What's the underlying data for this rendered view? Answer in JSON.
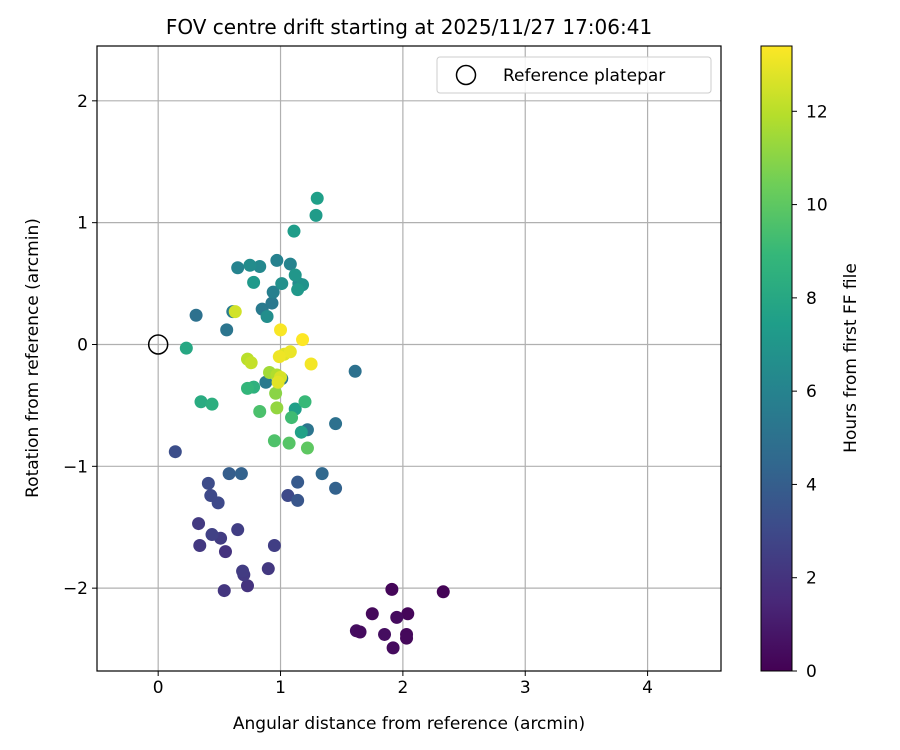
{
  "chart_data": {
    "type": "scatter",
    "title": "FOV centre drift starting at 2025/11/27 17:06:41",
    "xlabel": "Angular distance from reference (arcmin)",
    "ylabel": "Rotation from reference (arcmin)",
    "xlim": [
      -0.5,
      4.6
    ],
    "ylim": [
      -2.68,
      2.45
    ],
    "xticks": [
      0,
      1,
      2,
      3,
      4
    ],
    "yticks": [
      -2,
      -1,
      0,
      1,
      2
    ],
    "xtick_labels": [
      "0",
      "1",
      "2",
      "3",
      "4"
    ],
    "ytick_labels": [
      "−2",
      "−1",
      "0",
      "1",
      "2"
    ],
    "grid": true,
    "legend": {
      "location": "top-right",
      "entries": [
        "Reference platepar"
      ]
    },
    "reference_point": {
      "x": 0,
      "y": 0
    },
    "colorbar": {
      "label": "Hours from first FF file",
      "range": [
        0,
        13.4
      ],
      "ticks": [
        0,
        2,
        4,
        6,
        8,
        10,
        12
      ],
      "tick_labels": [
        "0",
        "2",
        "4",
        "6",
        "8",
        "10",
        "12"
      ],
      "colormap": [
        "#440154",
        "#482878",
        "#3e4989",
        "#31688e",
        "#26828e",
        "#1f9e89",
        "#35b779",
        "#6ece58",
        "#b5de2b",
        "#fde725"
      ]
    },
    "points": [
      {
        "x": 1.91,
        "y": -2.01,
        "h": 0.2
      },
      {
        "x": 2.33,
        "y": -2.03,
        "h": 0.1
      },
      {
        "x": 1.75,
        "y": -2.21,
        "h": 0.3
      },
      {
        "x": 2.04,
        "y": -2.21,
        "h": 0.2
      },
      {
        "x": 1.95,
        "y": -2.24,
        "h": 0.4
      },
      {
        "x": 2.03,
        "y": -2.38,
        "h": 0.3
      },
      {
        "x": 1.62,
        "y": -2.35,
        "h": 0.5
      },
      {
        "x": 1.65,
        "y": -2.36,
        "h": 0.4
      },
      {
        "x": 2.03,
        "y": -2.41,
        "h": 0.3
      },
      {
        "x": 1.85,
        "y": -2.38,
        "h": 0.5
      },
      {
        "x": 1.92,
        "y": -2.49,
        "h": 0.4
      },
      {
        "x": 0.54,
        "y": -2.02,
        "h": 2.1
      },
      {
        "x": 0.73,
        "y": -1.98,
        "h": 2.0
      },
      {
        "x": 0.7,
        "y": -1.89,
        "h": 2.3
      },
      {
        "x": 0.69,
        "y": -1.86,
        "h": 2.4
      },
      {
        "x": 0.9,
        "y": -1.84,
        "h": 2.2
      },
      {
        "x": 0.55,
        "y": -1.7,
        "h": 2.0
      },
      {
        "x": 0.95,
        "y": -1.65,
        "h": 2.5
      },
      {
        "x": 0.34,
        "y": -1.65,
        "h": 2.2
      },
      {
        "x": 0.51,
        "y": -1.59,
        "h": 2.4
      },
      {
        "x": 0.44,
        "y": -1.56,
        "h": 2.6
      },
      {
        "x": 0.33,
        "y": -1.47,
        "h": 2.3
      },
      {
        "x": 0.65,
        "y": -1.52,
        "h": 2.5
      },
      {
        "x": 0.49,
        "y": -1.3,
        "h": 3.0
      },
      {
        "x": 0.43,
        "y": -1.24,
        "h": 3.0
      },
      {
        "x": 0.41,
        "y": -1.14,
        "h": 3.1
      },
      {
        "x": 1.06,
        "y": -1.24,
        "h": 3.0
      },
      {
        "x": 0.14,
        "y": -0.88,
        "h": 3.2
      },
      {
        "x": 1.14,
        "y": -1.28,
        "h": 3.6
      },
      {
        "x": 1.14,
        "y": -1.13,
        "h": 3.8
      },
      {
        "x": 1.45,
        "y": -1.18,
        "h": 4.2
      },
      {
        "x": 0.58,
        "y": -1.06,
        "h": 4.0
      },
      {
        "x": 0.68,
        "y": -1.06,
        "h": 4.2
      },
      {
        "x": 1.34,
        "y": -1.06,
        "h": 4.5
      },
      {
        "x": 1.45,
        "y": -0.65,
        "h": 5.0
      },
      {
        "x": 1.22,
        "y": -0.7,
        "h": 5.2
      },
      {
        "x": 1.61,
        "y": -0.22,
        "h": 5.0
      },
      {
        "x": 0.31,
        "y": 0.24,
        "h": 5.0
      },
      {
        "x": 0.56,
        "y": 0.12,
        "h": 5.2
      },
      {
        "x": 0.88,
        "y": -0.31,
        "h": 5.5
      },
      {
        "x": 1.01,
        "y": -0.28,
        "h": 5.5
      },
      {
        "x": 0.61,
        "y": 0.27,
        "h": 5.6
      },
      {
        "x": 0.85,
        "y": 0.29,
        "h": 5.5
      },
      {
        "x": 0.93,
        "y": 0.34,
        "h": 5.4
      },
      {
        "x": 0.94,
        "y": 0.43,
        "h": 5.8
      },
      {
        "x": 0.65,
        "y": 0.63,
        "h": 6.0
      },
      {
        "x": 0.97,
        "y": 0.69,
        "h": 5.9
      },
      {
        "x": 1.08,
        "y": 0.66,
        "h": 6.0
      },
      {
        "x": 0.83,
        "y": 0.64,
        "h": 6.3
      },
      {
        "x": 0.75,
        "y": 0.65,
        "h": 6.5
      },
      {
        "x": 0.89,
        "y": 0.23,
        "h": 6.6
      },
      {
        "x": 1.01,
        "y": 0.5,
        "h": 6.7
      },
      {
        "x": 1.15,
        "y": 0.5,
        "h": 6.4
      },
      {
        "x": 1.18,
        "y": 0.49,
        "h": 6.8
      },
      {
        "x": 1.12,
        "y": 0.57,
        "h": 7.0
      },
      {
        "x": 1.14,
        "y": 0.45,
        "h": 7.1
      },
      {
        "x": 0.78,
        "y": 0.51,
        "h": 7.2
      },
      {
        "x": 1.11,
        "y": 0.93,
        "h": 7.4
      },
      {
        "x": 1.29,
        "y": 1.06,
        "h": 7.3
      },
      {
        "x": 1.3,
        "y": 1.2,
        "h": 7.5
      },
      {
        "x": 1.12,
        "y": -0.53,
        "h": 7.5
      },
      {
        "x": 1.17,
        "y": -0.72,
        "h": 7.6
      },
      {
        "x": 0.23,
        "y": -0.03,
        "h": 8.0
      },
      {
        "x": 0.35,
        "y": -0.47,
        "h": 8.2
      },
      {
        "x": 0.44,
        "y": -0.49,
        "h": 8.4
      },
      {
        "x": 0.78,
        "y": -0.35,
        "h": 8.5
      },
      {
        "x": 0.73,
        "y": -0.36,
        "h": 8.8
      },
      {
        "x": 1.2,
        "y": -0.47,
        "h": 9.0
      },
      {
        "x": 1.09,
        "y": -0.6,
        "h": 9.2
      },
      {
        "x": 0.83,
        "y": -0.55,
        "h": 9.5
      },
      {
        "x": 0.95,
        "y": -0.79,
        "h": 9.6
      },
      {
        "x": 1.07,
        "y": -0.81,
        "h": 9.8
      },
      {
        "x": 1.22,
        "y": -0.85,
        "h": 10.0
      },
      {
        "x": 0.96,
        "y": -0.4,
        "h": 11.0
      },
      {
        "x": 0.97,
        "y": -0.52,
        "h": 11.2
      },
      {
        "x": 0.91,
        "y": -0.23,
        "h": 11.5
      },
      {
        "x": 0.97,
        "y": -0.25,
        "h": 11.8
      },
      {
        "x": 0.73,
        "y": -0.12,
        "h": 12.0
      },
      {
        "x": 0.76,
        "y": -0.15,
        "h": 12.2
      },
      {
        "x": 0.63,
        "y": 0.27,
        "h": 12.5
      },
      {
        "x": 1.0,
        "y": -0.27,
        "h": 12.6
      },
      {
        "x": 0.98,
        "y": -0.31,
        "h": 12.8
      },
      {
        "x": 1.03,
        "y": -0.08,
        "h": 12.8
      },
      {
        "x": 1.08,
        "y": -0.06,
        "h": 13.0
      },
      {
        "x": 0.99,
        "y": -0.1,
        "h": 13.1
      },
      {
        "x": 1.25,
        "y": -0.16,
        "h": 13.2
      },
      {
        "x": 1.0,
        "y": 0.12,
        "h": 13.3
      },
      {
        "x": 1.18,
        "y": 0.04,
        "h": 13.4
      }
    ]
  }
}
